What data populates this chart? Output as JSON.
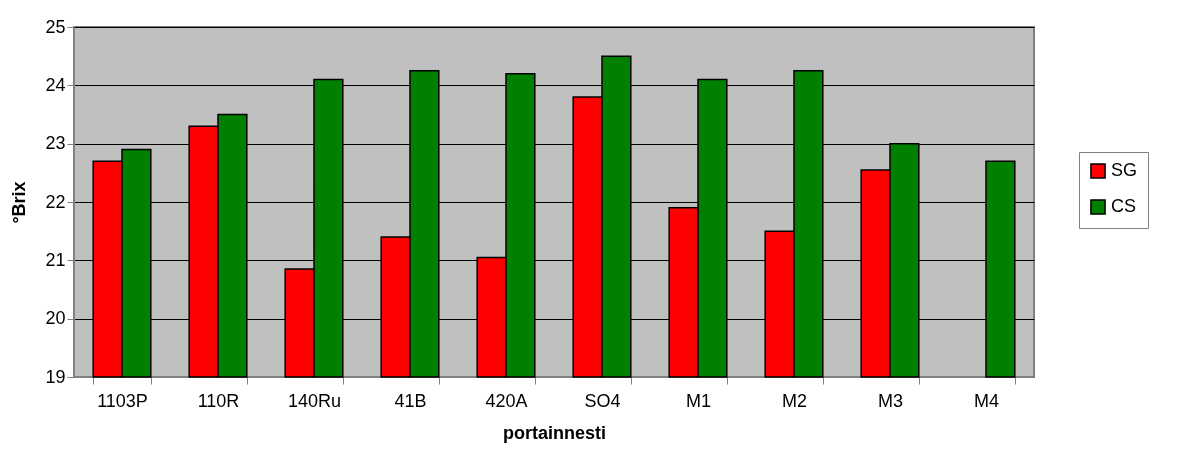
{
  "chart_data": {
    "type": "bar",
    "xlabel": "portainnesti",
    "ylabel": "°Brix",
    "categories": [
      "1103P",
      "110R",
      "140Ru",
      "41B",
      "420A",
      "SO4",
      "M1",
      "M2",
      "M3",
      "M4"
    ],
    "series": [
      {
        "name": "SG",
        "color": "#ff0000",
        "values": [
          22.7,
          23.3,
          20.85,
          21.4,
          21.05,
          23.8,
          21.9,
          21.5,
          22.55,
          null
        ]
      },
      {
        "name": "CS",
        "color": "#008000",
        "values": [
          22.9,
          23.5,
          24.1,
          24.25,
          24.2,
          24.5,
          24.1,
          24.25,
          23.0,
          22.7
        ]
      }
    ],
    "ylim": [
      19,
      25
    ],
    "yticks": [
      19,
      20,
      21,
      22,
      23,
      24,
      25
    ],
    "grid": "y",
    "legend": "right"
  }
}
